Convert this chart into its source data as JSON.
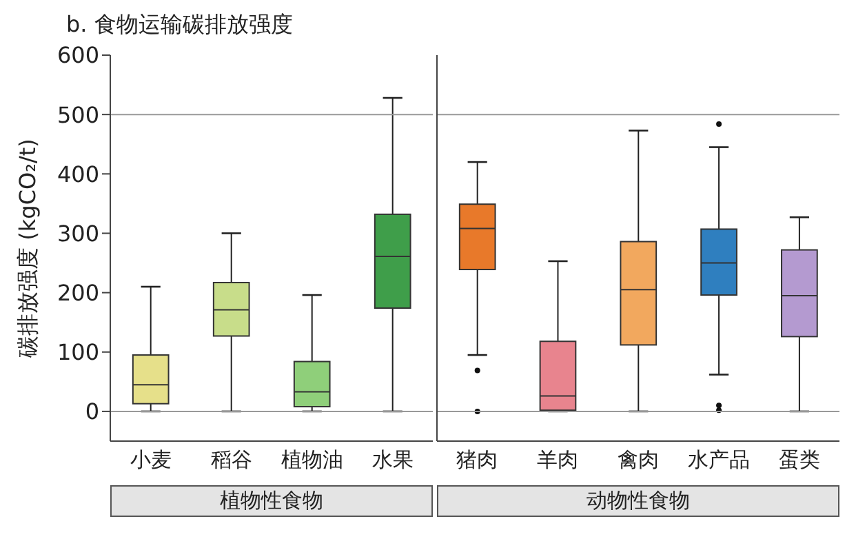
{
  "chart_data": [
    {
      "type": "box",
      "title": "b. 食物运输碳排放强度",
      "ylabel": "碳排放强度 (kgCO₂/t)",
      "xlabel": "植物性食物",
      "categories": [
        "小麦",
        "稻谷",
        "植物油",
        "水果"
      ],
      "colors": [
        "#e6e08a",
        "#c8dd8a",
        "#8fcf7a",
        "#3f9e4a"
      ],
      "boxes": [
        {
          "low": 0,
          "q1": 13,
          "median": 45,
          "q3": 95,
          "high": 210
        },
        {
          "low": 0,
          "q1": 127,
          "median": 171,
          "q3": 217,
          "high": 300
        },
        {
          "low": 0,
          "q1": 8,
          "median": 33,
          "q3": 84,
          "high": 196
        },
        {
          "low": 0,
          "q1": 174,
          "median": 261,
          "q3": 332,
          "high": 528
        }
      ],
      "ylim": [
        -50,
        600
      ],
      "yticks": [
        0,
        100,
        200,
        300,
        400,
        500,
        600
      ],
      "ref_lines": [
        {
          "axis": "y",
          "value": 0
        },
        {
          "axis": "y",
          "value": 500
        }
      ]
    },
    {
      "type": "box",
      "xlabel": "动物性食物",
      "categories": [
        "猪肉",
        "羊肉",
        "禽肉",
        "水产品",
        "蛋类"
      ],
      "colors": [
        "#e8792a",
        "#e8848e",
        "#f2a85e",
        "#2f7fbf",
        "#b49ad0"
      ],
      "boxes": [
        {
          "low": 95,
          "q1": 239,
          "median": 308,
          "q3": 349,
          "high": 420,
          "outliers": [
            69,
            0
          ]
        },
        {
          "low": 0,
          "q1": 2,
          "median": 26,
          "q3": 118,
          "high": 253
        },
        {
          "low": 0,
          "q1": 112,
          "median": 205,
          "q3": 286,
          "high": 473
        },
        {
          "low": 62,
          "q1": 196,
          "median": 250,
          "q3": 307,
          "high": 445,
          "outliers": [
            484,
            10,
            2
          ]
        },
        {
          "low": 0,
          "q1": 126,
          "median": 195,
          "q3": 272,
          "high": 327
        }
      ],
      "ylim": [
        -50,
        600
      ],
      "yticks": [
        0,
        100,
        200,
        300,
        400,
        500,
        600
      ],
      "tick_labels": "x",
      "ref_lines": [
        {
          "axis": "y",
          "value": 0
        },
        {
          "axis": "y",
          "value": 500
        }
      ]
    }
  ]
}
